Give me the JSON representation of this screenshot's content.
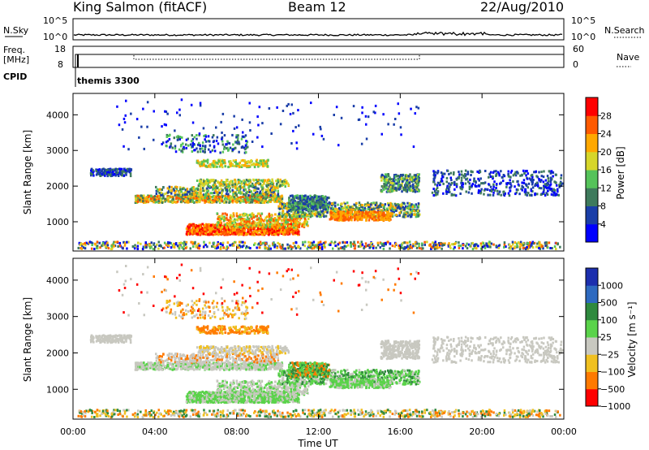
{
  "header": {
    "station": "King Salmon (fitACF)",
    "beam": "Beam 12",
    "date": "22/Aug/2010"
  },
  "top_panels": {
    "nsky_label": "N.Sky",
    "nsearch_label": "N.Search",
    "freq_label_1": "Freq.",
    "freq_label_2": "[MHz]",
    "nave_label": "Nave",
    "cpid_label": "CPID",
    "cpid_value": "themis 3300",
    "noise_ticks": [
      "10^5",
      "10^0"
    ],
    "freq_ticks": [
      "18",
      "8"
    ],
    "nave_ticks": [
      "60",
      "0"
    ]
  },
  "power_panel": {
    "ylabel": "Slant Range [km]",
    "yticks": [
      "1000",
      "2000",
      "3000",
      "4000"
    ],
    "colorbar_label": "Power [dB]",
    "colorbar_ticks": [
      "4",
      "8",
      "12",
      "16",
      "20",
      "24",
      "28"
    ]
  },
  "velocity_panel": {
    "ylabel": "Slant Range [km]",
    "yticks": [
      "1000",
      "2000",
      "3000",
      "4000"
    ],
    "colorbar_label": "Velocity [m s⁻¹]",
    "colorbar_ticks": [
      "1000",
      "500",
      "100",
      "25",
      "−25",
      "−100",
      "−500",
      "−1000"
    ]
  },
  "xaxis": {
    "label": "Time UT",
    "ticks": [
      "00:00",
      "04:00",
      "08:00",
      "12:00",
      "16:00",
      "20:00",
      "00:00"
    ]
  },
  "chart_data": {
    "type": "heatmap",
    "x_range_hours": [
      0,
      24
    ],
    "y_range_km": [
      180,
      4600
    ],
    "power_colors": [
      "#0000ff",
      "#1a3ea8",
      "#3e7a5c",
      "#55c35a",
      "#d6d62a",
      "#ffa800",
      "#ff5a00",
      "#ff0000"
    ],
    "velocity_colors": [
      "#1c2fae",
      "#2e6ac0",
      "#2f8a3e",
      "#5ad34a",
      "#c8c8c0",
      "#f0c020",
      "#ff7a00",
      "#ff0000"
    ]
  }
}
